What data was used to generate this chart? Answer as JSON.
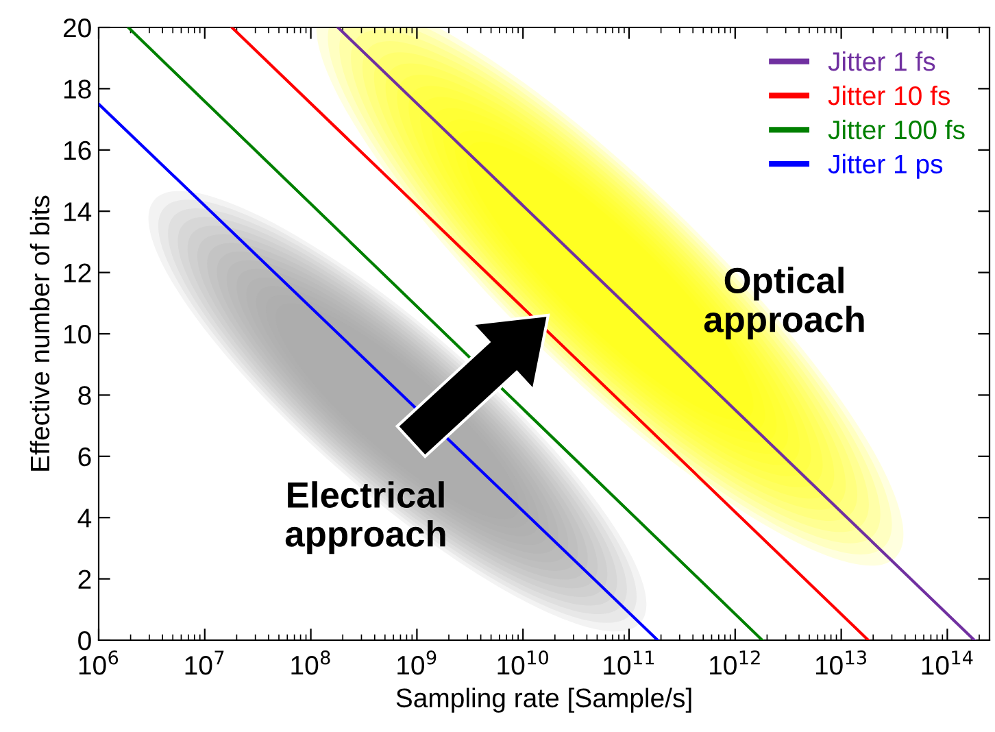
{
  "chart_data": {
    "type": "line",
    "xlabel": "Sampling rate [Sample/s]",
    "ylabel": "Effective number of bits",
    "series": [
      {
        "name": "Jitter 1 fs",
        "color": "#7030a0",
        "x": [
          180000000.0,
          180000000000000.0
        ],
        "values": [
          20,
          0
        ]
      },
      {
        "name": "Jitter 10 fs",
        "color": "#ff0000",
        "x": [
          18000000.0,
          18000000000000.0
        ],
        "values": [
          20,
          0
        ]
      },
      {
        "name": "Jitter 100 fs",
        "color": "#008000",
        "x": [
          1900000.0,
          1800000000000.0
        ],
        "values": [
          20,
          0
        ]
      },
      {
        "name": "Jitter 1 ps",
        "color": "#0000ff",
        "x": [
          1000000.0,
          186000000000.0
        ],
        "values": [
          17.5,
          0
        ]
      }
    ],
    "log": "x",
    "xlim": [
      1000000.0,
      250000000000000.0
    ],
    "xticks": [
      {
        "value": 1000000.0,
        "label": "10$^{6}$"
      },
      {
        "value": 10000000.0,
        "label": "10$^{7}$"
      },
      {
        "value": 100000000.0,
        "label": "10$^{8}$"
      },
      {
        "value": 1000000000.0,
        "label": "10$^{9}$"
      },
      {
        "value": 10000000000.0,
        "label": "10$^{10}$"
      },
      {
        "value": 100000000000.0,
        "label": "10$^{11}$"
      },
      {
        "value": 1000000000000.0,
        "label": "10$^{12}$"
      },
      {
        "value": 10000000000000.0,
        "label": "10$^{13}$"
      },
      {
        "value": 100000000000000.0,
        "label": "10$^{14}$"
      }
    ],
    "ylim": [
      0,
      20
    ],
    "yticks": [
      0,
      2,
      4,
      6,
      8,
      10,
      12,
      14,
      16,
      18,
      20
    ],
    "grid": false,
    "legend": "top right",
    "marker": "none",
    "line_style": "solid",
    "annotations": [
      "Optical\napproach",
      "Electrical\napproach"
    ]
  }
}
